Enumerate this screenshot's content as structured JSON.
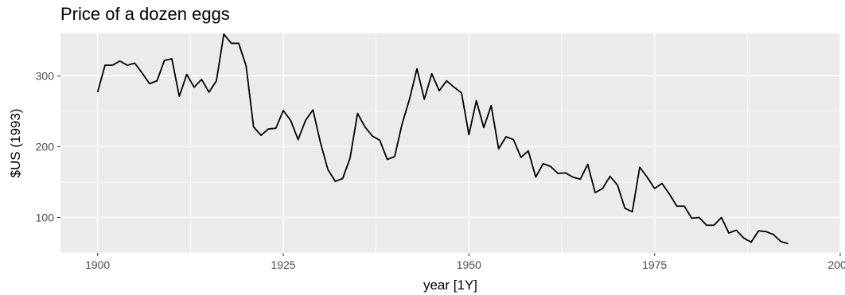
{
  "chart_data": {
    "type": "line",
    "title": "Price of a dozen eggs",
    "xlabel": "year [1Y]",
    "ylabel": "$US (1993)",
    "xlim": [
      1895,
      2000
    ],
    "ylim": [
      50,
      360
    ],
    "x_ticks": [
      1900,
      1925,
      1950,
      1975,
      2000
    ],
    "y_ticks": [
      100,
      200,
      300
    ],
    "grid": true,
    "legend": "none",
    "colors": {
      "panel": "#ebebeb",
      "grid": "#ffffff",
      "line": "#000000",
      "tick_text": "#4d4d4d"
    },
    "series": [
      {
        "x": [
          1900,
          1901,
          1902,
          1903,
          1904,
          1905,
          1906,
          1907,
          1908,
          1909,
          1910,
          1911,
          1912,
          1913,
          1914,
          1915,
          1916,
          1917,
          1918,
          1919,
          1920,
          1921,
          1922,
          1923,
          1924,
          1925,
          1926,
          1927,
          1928,
          1929,
          1930,
          1931,
          1932,
          1933,
          1934,
          1935,
          1936,
          1937,
          1938,
          1939,
          1940,
          1941,
          1942,
          1943,
          1944,
          1945,
          1946,
          1947,
          1948,
          1949,
          1950,
          1951,
          1952,
          1953,
          1954,
          1955,
          1956,
          1957,
          1958,
          1959,
          1960,
          1961,
          1962,
          1963,
          1964,
          1965,
          1966,
          1967,
          1968,
          1969,
          1970,
          1971,
          1972,
          1973,
          1974,
          1975,
          1976,
          1977,
          1978,
          1979,
          1980,
          1981,
          1982,
          1983,
          1984,
          1985,
          1986,
          1987,
          1988,
          1989,
          1990,
          1991,
          1992,
          1993
        ],
        "values": [
          277,
          315,
          315,
          321,
          315,
          318,
          304,
          289,
          293,
          322,
          324,
          271,
          302,
          284,
          295,
          277,
          293,
          359,
          346,
          346,
          314,
          228,
          216,
          225,
          226,
          251,
          237,
          210,
          237,
          252,
          206,
          168,
          151,
          155,
          184,
          247,
          228,
          215,
          209,
          182,
          186,
          232,
          267,
          310,
          267,
          303,
          279,
          293,
          284,
          276,
          217,
          265,
          227,
          258,
          197,
          214,
          210,
          185,
          194,
          157,
          176,
          172,
          162,
          163,
          157,
          154,
          175,
          135,
          141,
          158,
          146,
          113,
          108,
          171,
          157,
          141,
          148,
          133,
          116,
          116,
          99,
          100,
          89,
          89,
          100,
          78,
          82,
          71,
          65,
          81,
          80,
          76,
          66,
          63
        ]
      }
    ]
  }
}
